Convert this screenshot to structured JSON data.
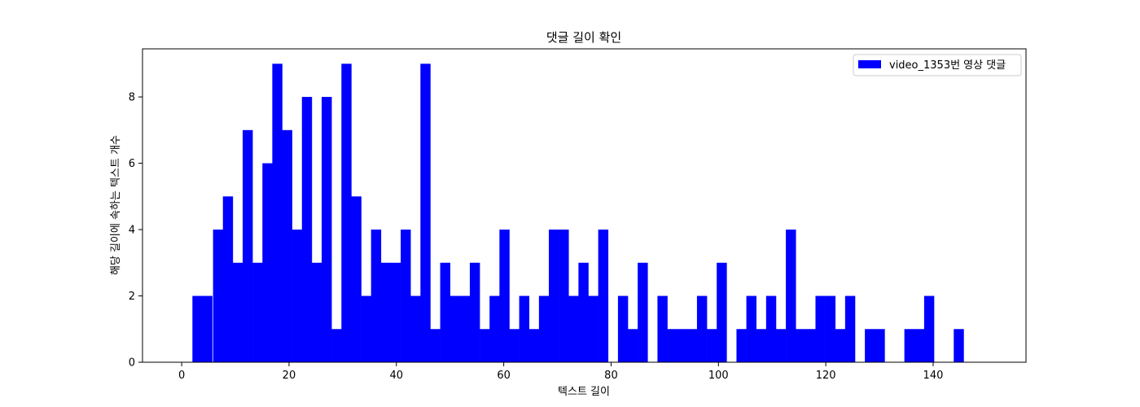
{
  "chart_data": {
    "type": "bar",
    "title": "댓글 길이 확인",
    "xlabel": "텍스트 길이",
    "ylabel": "해당 길이에 속하는 텍스트 개수",
    "xlim": [
      -7.3,
      157.3
    ],
    "ylim": [
      0,
      9.45
    ],
    "xticks": [
      0,
      20,
      40,
      60,
      80,
      100,
      120,
      140
    ],
    "yticks": [
      0,
      2,
      4,
      6,
      8
    ],
    "grid": false,
    "legend_position": "top-right",
    "bin_width": 1.84,
    "series": [
      {
        "name": "video_1353번 영상 댓글",
        "color": "#0000ff",
        "bin_starts": [
          2.0,
          3.84,
          5.84,
          7.68,
          9.52,
          11.36,
          13.2,
          15.04,
          16.88,
          18.72,
          20.56,
          22.4,
          24.24,
          26.08,
          27.92,
          29.76,
          31.6,
          33.44,
          35.28,
          37.12,
          38.96,
          40.8,
          42.64,
          44.48,
          46.32,
          48.16,
          50.0,
          51.84,
          53.68,
          55.52,
          57.36,
          59.2,
          61.04,
          62.88,
          64.72,
          66.56,
          68.4,
          70.24,
          72.08,
          73.92,
          75.76,
          77.6,
          79.44,
          81.28,
          83.12,
          84.96,
          86.8,
          88.64,
          90.48,
          92.32,
          94.16,
          96.0,
          97.84,
          99.68,
          101.52,
          103.36,
          105.2,
          107.04,
          108.88,
          110.72,
          112.56,
          114.4,
          116.24,
          118.08,
          119.92,
          121.76,
          123.6,
          125.44,
          127.28,
          129.12,
          130.96,
          132.8,
          134.64,
          136.48,
          138.32,
          140.16,
          142.0,
          143.84,
          145.68
        ],
        "counts": [
          2,
          2,
          4,
          5,
          3,
          7,
          3,
          6,
          9,
          7,
          4,
          8,
          3,
          8,
          1,
          9,
          5,
          2,
          4,
          3,
          3,
          4,
          2,
          9,
          1,
          3,
          2,
          2,
          3,
          1,
          2,
          4,
          1,
          2,
          1,
          2,
          4,
          4,
          2,
          3,
          2,
          4,
          0,
          2,
          1,
          3,
          0,
          2,
          1,
          1,
          1,
          2,
          1,
          3,
          0,
          1,
          2,
          1,
          2,
          1,
          4,
          1,
          1,
          2,
          2,
          1,
          2,
          0,
          1,
          1,
          0,
          0,
          1,
          1,
          2,
          0,
          0,
          1,
          0
        ]
      }
    ]
  }
}
